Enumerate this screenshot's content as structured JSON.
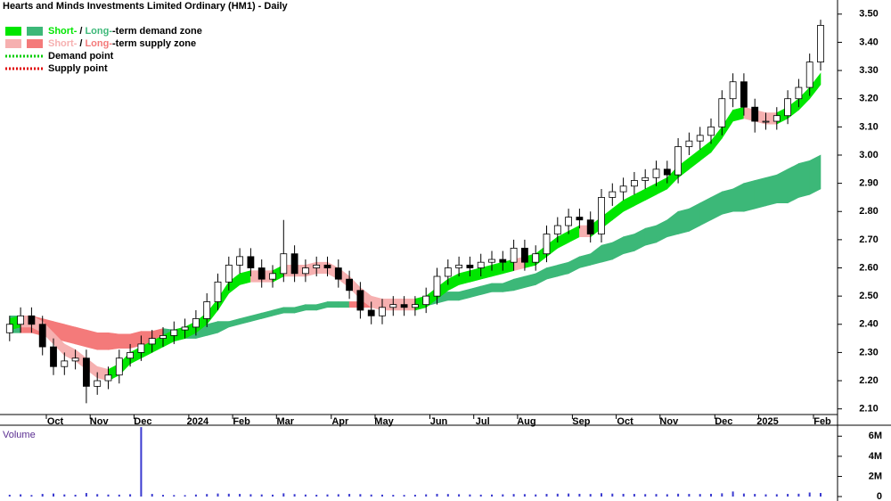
{
  "chart_data": [
    {
      "type": "candlestick",
      "title": "Hearts and Minds Investments Limited Ordinary (HM1) - Daily",
      "categories": [
        null,
        null,
        null,
        null,
        "Oct",
        null,
        null,
        null,
        "Nov",
        null,
        null,
        null,
        "Dec",
        null,
        null,
        null,
        null,
        "2024",
        null,
        null,
        null,
        "Feb",
        null,
        null,
        null,
        "Mar",
        null,
        null,
        null,
        null,
        "Apr",
        null,
        null,
        null,
        "May",
        null,
        null,
        null,
        null,
        "Jun",
        null,
        null,
        null,
        "Jul",
        null,
        null,
        null,
        "Aug",
        null,
        null,
        null,
        null,
        "Sep",
        null,
        null,
        null,
        "Oct",
        null,
        null,
        null,
        "Nov",
        null,
        null,
        null,
        null,
        "Dec",
        null,
        null,
        null,
        "2025",
        null,
        null,
        null,
        null,
        "Feb"
      ],
      "open": [
        2.37,
        2.4,
        2.43,
        2.4,
        2.32,
        2.25,
        2.27,
        2.28,
        2.18,
        2.2,
        2.22,
        2.28,
        2.3,
        2.33,
        2.35,
        2.36,
        2.38,
        2.39,
        2.42,
        2.48,
        2.55,
        2.61,
        2.64,
        2.6,
        2.56,
        2.58,
        2.65,
        2.58,
        2.6,
        2.61,
        2.6,
        2.56,
        2.52,
        2.45,
        2.43,
        2.46,
        2.47,
        2.46,
        2.47,
        2.5,
        2.57,
        2.6,
        2.61,
        2.6,
        2.62,
        2.63,
        2.62,
        2.67,
        2.62,
        2.65,
        2.72,
        2.75,
        2.78,
        2.77,
        2.72,
        2.85,
        2.87,
        2.89,
        2.91,
        2.92,
        2.95,
        2.93,
        3.03,
        3.05,
        3.07,
        3.1,
        3.2,
        3.26,
        3.17,
        3.12,
        3.12,
        3.14,
        3.2,
        3.24,
        3.33
      ],
      "high": [
        2.43,
        2.46,
        2.46,
        2.43,
        2.35,
        2.3,
        2.31,
        2.31,
        2.23,
        2.25,
        2.31,
        2.33,
        2.36,
        2.38,
        2.39,
        2.41,
        2.42,
        2.45,
        2.51,
        2.58,
        2.64,
        2.67,
        2.67,
        2.63,
        2.61,
        2.77,
        2.68,
        2.63,
        2.64,
        2.64,
        2.63,
        2.59,
        2.55,
        2.48,
        2.49,
        2.5,
        2.5,
        2.5,
        2.53,
        2.6,
        2.63,
        2.64,
        2.64,
        2.65,
        2.66,
        2.66,
        2.7,
        2.7,
        2.68,
        2.75,
        2.78,
        2.81,
        2.81,
        2.8,
        2.88,
        2.9,
        2.92,
        2.94,
        2.95,
        2.98,
        2.98,
        3.06,
        3.08,
        3.1,
        3.13,
        3.23,
        3.29,
        3.29,
        3.2,
        3.15,
        3.17,
        3.23,
        3.27,
        3.36,
        3.48
      ],
      "low": [
        2.34,
        2.37,
        2.37,
        2.29,
        2.22,
        2.22,
        2.24,
        2.12,
        2.15,
        2.17,
        2.19,
        2.25,
        2.27,
        2.3,
        2.32,
        2.33,
        2.35,
        2.36,
        2.39,
        2.45,
        2.52,
        2.58,
        2.57,
        2.53,
        2.53,
        2.55,
        2.55,
        2.55,
        2.57,
        2.57,
        2.53,
        2.49,
        2.42,
        2.4,
        2.4,
        2.43,
        2.43,
        2.43,
        2.44,
        2.47,
        2.54,
        2.57,
        2.57,
        2.57,
        2.59,
        2.59,
        2.59,
        2.59,
        2.59,
        2.62,
        2.69,
        2.72,
        2.74,
        2.69,
        2.69,
        2.82,
        2.84,
        2.86,
        2.88,
        2.89,
        2.9,
        2.9,
        3.0,
        3.02,
        3.04,
        3.07,
        3.17,
        3.14,
        3.08,
        3.09,
        3.09,
        3.11,
        3.17,
        3.21,
        3.3
      ],
      "close": [
        2.4,
        2.43,
        2.4,
        2.32,
        2.25,
        2.27,
        2.28,
        2.18,
        2.2,
        2.22,
        2.28,
        2.3,
        2.33,
        2.35,
        2.36,
        2.38,
        2.39,
        2.42,
        2.48,
        2.55,
        2.61,
        2.64,
        2.6,
        2.56,
        2.58,
        2.65,
        2.58,
        2.6,
        2.61,
        2.6,
        2.56,
        2.52,
        2.45,
        2.43,
        2.46,
        2.47,
        2.46,
        2.47,
        2.5,
        2.57,
        2.6,
        2.61,
        2.6,
        2.62,
        2.63,
        2.62,
        2.67,
        2.62,
        2.65,
        2.72,
        2.75,
        2.78,
        2.77,
        2.72,
        2.85,
        2.87,
        2.89,
        2.91,
        2.92,
        2.95,
        2.93,
        3.03,
        3.05,
        3.07,
        3.1,
        3.2,
        3.26,
        3.17,
        3.12,
        3.12,
        3.14,
        3.2,
        3.24,
        3.33,
        3.46
      ],
      "zones": [
        {
          "name": "long-term",
          "demand_color": "#3cb878",
          "supply_color": "#f47a7a",
          "upper": [
            2.43,
            2.43,
            2.43,
            2.42,
            2.41,
            2.4,
            2.39,
            2.38,
            2.37,
            2.37,
            2.365,
            2.365,
            2.375,
            2.375,
            2.385,
            2.38,
            2.39,
            2.39,
            2.4,
            2.41,
            2.41,
            2.42,
            2.43,
            2.44,
            2.45,
            2.46,
            2.46,
            2.47,
            2.47,
            2.48,
            2.48,
            2.48,
            2.48,
            2.48,
            2.48,
            2.48,
            2.48,
            2.48,
            2.495,
            2.505,
            2.515,
            2.515,
            2.525,
            2.535,
            2.545,
            2.545,
            2.56,
            2.57,
            2.58,
            2.6,
            2.61,
            2.62,
            2.64,
            2.65,
            2.68,
            2.69,
            2.71,
            2.72,
            2.74,
            2.75,
            2.77,
            2.8,
            2.81,
            2.83,
            2.85,
            2.87,
            2.88,
            2.9,
            2.91,
            2.92,
            2.93,
            2.95,
            2.97,
            2.98,
            3.0
          ],
          "lower": [
            2.37,
            2.37,
            2.37,
            2.36,
            2.35,
            2.34,
            2.33,
            2.32,
            2.31,
            2.31,
            2.315,
            2.315,
            2.325,
            2.325,
            2.335,
            2.34,
            2.35,
            2.35,
            2.36,
            2.37,
            2.39,
            2.4,
            2.41,
            2.42,
            2.43,
            2.44,
            2.44,
            2.45,
            2.45,
            2.46,
            2.46,
            2.46,
            2.46,
            2.46,
            2.46,
            2.46,
            2.46,
            2.46,
            2.465,
            2.475,
            2.485,
            2.485,
            2.495,
            2.505,
            2.515,
            2.515,
            2.52,
            2.53,
            2.54,
            2.56,
            2.57,
            2.58,
            2.6,
            2.61,
            2.62,
            2.63,
            2.65,
            2.66,
            2.68,
            2.69,
            2.71,
            2.72,
            2.73,
            2.75,
            2.77,
            2.79,
            2.8,
            2.8,
            2.81,
            2.82,
            2.83,
            2.83,
            2.85,
            2.86,
            2.88
          ]
        },
        {
          "name": "short-term",
          "demand_color": "#00e600",
          "supply_color": "#f6b0b0",
          "upper": [
            2.42,
            2.43,
            2.43,
            2.41,
            2.37,
            2.33,
            2.31,
            2.28,
            2.25,
            2.24,
            2.26,
            2.3,
            2.32,
            2.34,
            2.36,
            2.38,
            2.39,
            2.41,
            2.44,
            2.49,
            2.55,
            2.58,
            2.59,
            2.59,
            2.59,
            2.61,
            2.61,
            2.61,
            2.62,
            2.62,
            2.6,
            2.57,
            2.53,
            2.5,
            2.49,
            2.49,
            2.49,
            2.49,
            2.5,
            2.53,
            2.56,
            2.58,
            2.59,
            2.6,
            2.61,
            2.62,
            2.63,
            2.64,
            2.65,
            2.68,
            2.71,
            2.73,
            2.75,
            2.75,
            2.78,
            2.81,
            2.84,
            2.86,
            2.88,
            2.9,
            2.92,
            2.96,
            2.99,
            3.02,
            3.05,
            3.1,
            3.16,
            3.17,
            3.16,
            3.15,
            3.15,
            3.17,
            3.2,
            3.24,
            3.29
          ],
          "lower": [
            2.38,
            2.39,
            2.39,
            2.37,
            2.33,
            2.29,
            2.27,
            2.24,
            2.21,
            2.2,
            2.22,
            2.26,
            2.28,
            2.3,
            2.32,
            2.34,
            2.35,
            2.37,
            2.4,
            2.45,
            2.51,
            2.54,
            2.55,
            2.55,
            2.55,
            2.57,
            2.57,
            2.57,
            2.58,
            2.58,
            2.56,
            2.53,
            2.49,
            2.46,
            2.45,
            2.45,
            2.45,
            2.45,
            2.46,
            2.49,
            2.52,
            2.54,
            2.55,
            2.56,
            2.57,
            2.58,
            2.59,
            2.6,
            2.61,
            2.64,
            2.67,
            2.69,
            2.71,
            2.71,
            2.74,
            2.77,
            2.8,
            2.82,
            2.84,
            2.86,
            2.88,
            2.92,
            2.95,
            2.98,
            3.01,
            3.06,
            3.12,
            3.13,
            3.12,
            3.11,
            3.11,
            3.13,
            3.16,
            3.2,
            3.25
          ]
        }
      ],
      "legend": [
        {
          "short": "Short-",
          "sep": "/",
          "long": "Long-",
          "suffix": "-term demand zone",
          "short_color": "#00e600",
          "long_color": "#3cb878"
        },
        {
          "short": "Short-",
          "sep": "/",
          "long": "Long-",
          "suffix": "-term supply zone",
          "short_color": "#f6b0b0",
          "long_color": "#f47a7a"
        },
        {
          "label": "Demand point",
          "color": "#00cc00"
        },
        {
          "label": "Supply point",
          "color": "#e00000"
        }
      ],
      "up_color": "#ffffff",
      "down_color": "#000000",
      "ylim": [
        2.08,
        3.55
      ],
      "yticks": [
        {
          "value": 2.1,
          "label": "2.10"
        },
        {
          "value": 2.2,
          "label": "2.20"
        },
        {
          "value": 2.3,
          "label": "2.30"
        },
        {
          "value": 2.4,
          "label": "2.40"
        },
        {
          "value": 2.5,
          "label": "2.50"
        },
        {
          "value": 2.6,
          "label": "2.60"
        },
        {
          "value": 2.7,
          "label": "2.70"
        },
        {
          "value": 2.8,
          "label": "2.80"
        },
        {
          "value": 2.9,
          "label": "2.90"
        },
        {
          "value": 3.0,
          "label": "3.00"
        },
        {
          "value": 3.1,
          "label": "3.10"
        },
        {
          "value": 3.2,
          "label": "3.20"
        },
        {
          "value": 3.3,
          "label": "3.30"
        },
        {
          "value": 3.4,
          "label": "3.40"
        },
        {
          "value": 3.5,
          "label": "3.50"
        }
      ]
    },
    {
      "type": "bar",
      "title": "Volume",
      "color": "#3a3ad0",
      "values": [
        180000,
        220000,
        150000,
        260000,
        300000,
        210000,
        180000,
        350000,
        240000,
        200000,
        190000,
        230000,
        6900000,
        260000,
        170000,
        150000,
        140000,
        200000,
        250000,
        300000,
        280000,
        260000,
        230000,
        210000,
        190000,
        320000,
        240000,
        200000,
        180000,
        210000,
        230000,
        260000,
        240000,
        200000,
        190000,
        170000,
        160000,
        180000,
        220000,
        270000,
        250000,
        230000,
        210000,
        190000,
        200000,
        220000,
        250000,
        240000,
        210000,
        260000,
        280000,
        300000,
        270000,
        250000,
        330000,
        290000,
        270000,
        260000,
        240000,
        250000,
        230000,
        280000,
        260000,
        250000,
        270000,
        320000,
        500000,
        300000,
        260000,
        220000,
        230000,
        260000,
        280000,
        400000,
        350000
      ],
      "ylim": [
        0,
        7000000
      ],
      "yticks": [
        0,
        {
          "value": 2000000,
          "label": "2M"
        },
        {
          "value": 4000000,
          "label": "4M"
        },
        {
          "value": 6000000,
          "label": "6M"
        }
      ]
    }
  ]
}
